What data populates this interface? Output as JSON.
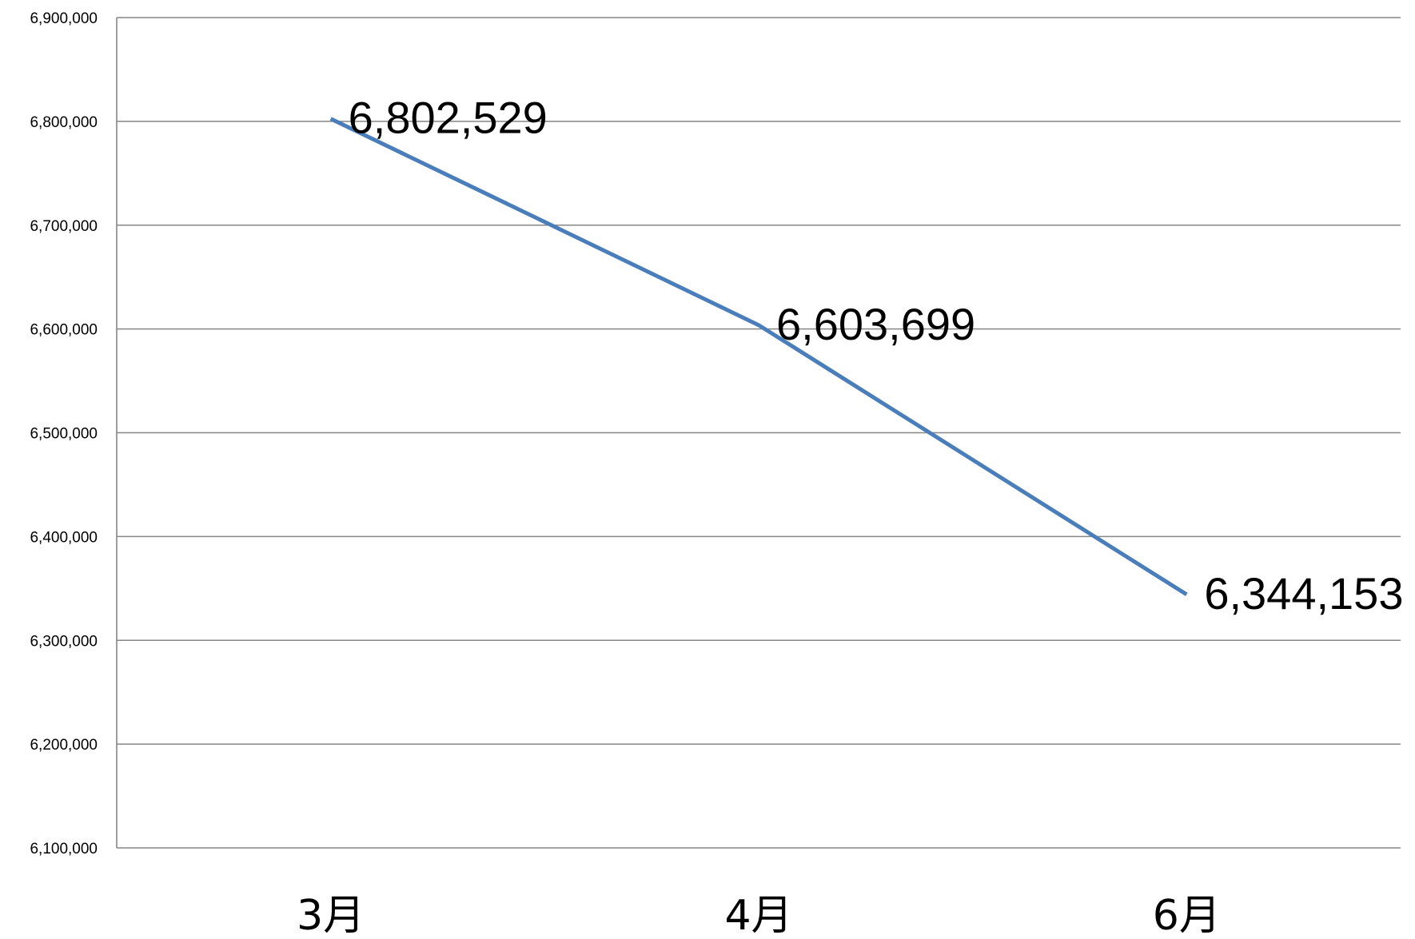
{
  "chart_data": {
    "type": "line",
    "categories": [
      "3月",
      "4月",
      "6月"
    ],
    "series": [
      {
        "values": [
          6802529,
          6603699,
          6344153
        ]
      }
    ],
    "data_labels": [
      "6,802,529",
      "6,603,699",
      "6,344,153"
    ],
    "yticks": [
      {
        "value": 6100000,
        "label": "6,100,000"
      },
      {
        "value": 6200000,
        "label": "6,200,000"
      },
      {
        "value": 6300000,
        "label": "6,300,000"
      },
      {
        "value": 6400000,
        "label": "6,400,000"
      },
      {
        "value": 6500000,
        "label": "6,500,000"
      },
      {
        "value": 6600000,
        "label": "6,600,000"
      },
      {
        "value": 6700000,
        "label": "6,700,000"
      },
      {
        "value": 6800000,
        "label": "6,800,000"
      },
      {
        "value": 6900000,
        "label": "6,900,000"
      }
    ],
    "ylim": [
      6100000,
      6900000
    ],
    "grid": true,
    "legend": "none",
    "title": "",
    "xlabel": "",
    "ylabel": "",
    "colors": {
      "line": "#4a7ebb",
      "grid": "#868686",
      "text": "#000000"
    }
  }
}
